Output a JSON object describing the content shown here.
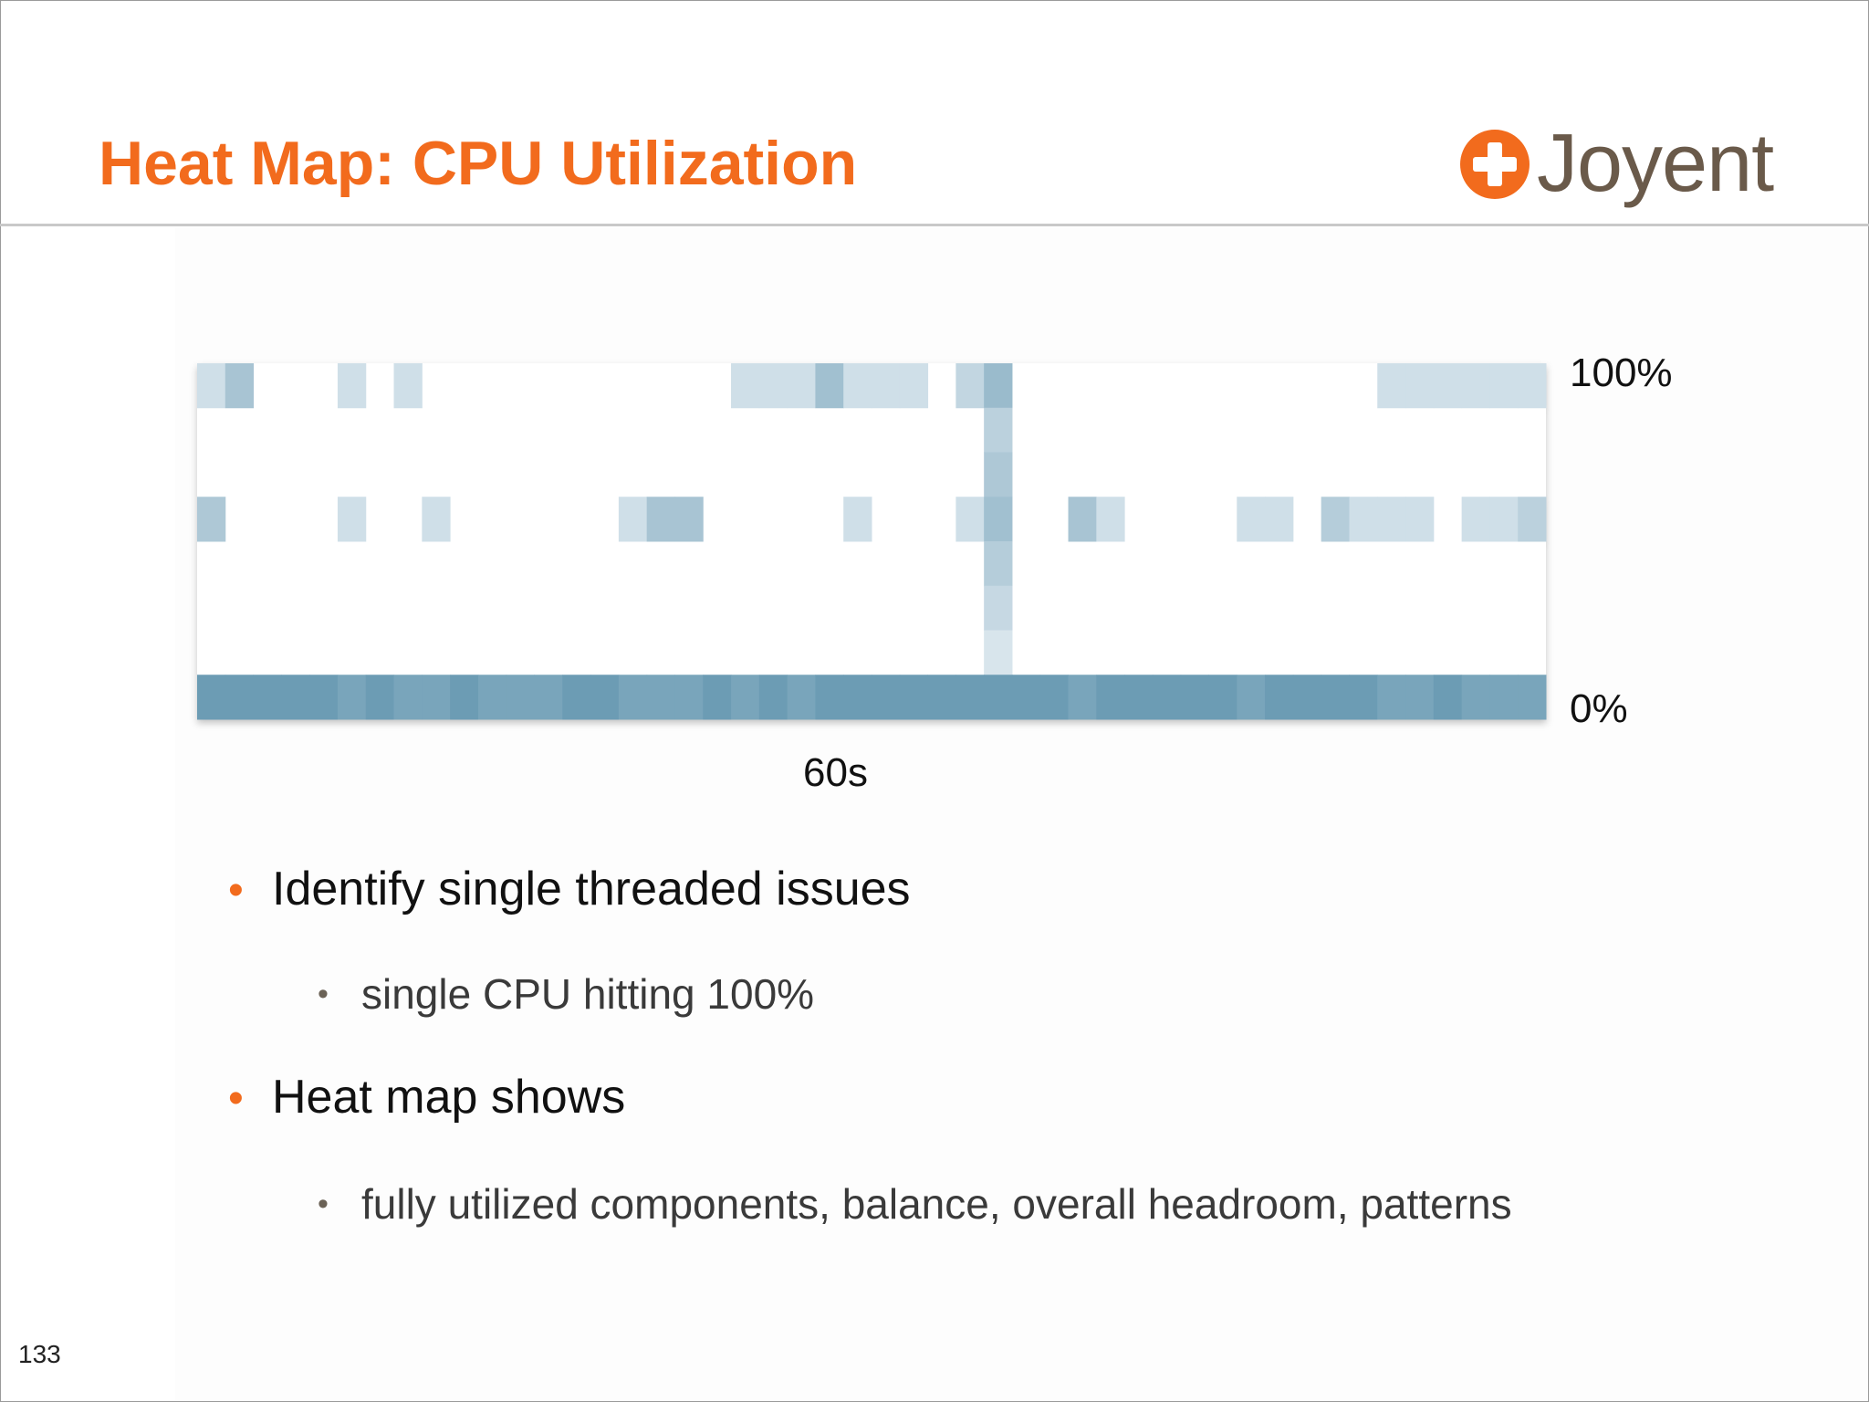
{
  "slide": {
    "title": "Heat Map: CPU Utilization",
    "logo_text": "Joyent",
    "logo_icon": "plus-circle-icon",
    "page_number": "133"
  },
  "bullets": [
    {
      "level": 1,
      "text": "Identify single threaded issues"
    },
    {
      "level": 2,
      "text": "single CPU hitting 100%"
    },
    {
      "level": 1,
      "text": "Heat map shows"
    },
    {
      "level": 2,
      "text": "fully utilized components, balance, overall headroom, patterns"
    }
  ],
  "colors": {
    "title": "#f26b1d",
    "bullet_level1": "#f26b1d",
    "heat_base": "#6a9cb5",
    "heat_light": "#e3ecf2"
  },
  "chart_data": {
    "type": "heatmap",
    "title": "",
    "xlabel": "60s",
    "ylabel": "",
    "y_tick_labels": {
      "top": "100%",
      "bottom": "0%"
    },
    "x_range_seconds": [
      0,
      60
    ],
    "y_range_percent": [
      0,
      100
    ],
    "bucket_scale": "0 = empty, 1 = darkest",
    "columns": 48,
    "rows": [
      {
        "row_from_top": 0,
        "cells": [
          [
            0,
            0.15
          ],
          [
            1,
            0.45
          ],
          [
            5,
            0.15
          ],
          [
            7,
            0.15
          ],
          [
            19,
            0.15
          ],
          [
            20,
            0.15
          ],
          [
            21,
            0.15
          ],
          [
            22,
            0.5
          ],
          [
            23,
            0.15
          ],
          [
            24,
            0.15
          ],
          [
            25,
            0.15
          ],
          [
            27,
            0.25
          ],
          [
            28,
            0.55
          ],
          [
            42,
            0.15
          ],
          [
            43,
            0.15
          ],
          [
            44,
            0.15
          ],
          [
            45,
            0.15
          ],
          [
            46,
            0.15
          ],
          [
            47,
            0.15
          ]
        ]
      },
      {
        "row_from_top": 1,
        "cells": [
          [
            28,
            0.3
          ]
        ]
      },
      {
        "row_from_top": 2,
        "cells": [
          [
            28,
            0.4
          ]
        ]
      },
      {
        "row_from_top": 3,
        "cells": [
          [
            0,
            0.4
          ],
          [
            5,
            0.15
          ],
          [
            8,
            0.15
          ],
          [
            15,
            0.15
          ],
          [
            16,
            0.45
          ],
          [
            17,
            0.45
          ],
          [
            23,
            0.15
          ],
          [
            27,
            0.15
          ],
          [
            28,
            0.5
          ],
          [
            31,
            0.45
          ],
          [
            32,
            0.15
          ],
          [
            37,
            0.15
          ],
          [
            38,
            0.15
          ],
          [
            40,
            0.35
          ],
          [
            41,
            0.15
          ],
          [
            42,
            0.15
          ],
          [
            43,
            0.15
          ],
          [
            45,
            0.15
          ],
          [
            46,
            0.15
          ],
          [
            47,
            0.3
          ]
        ]
      },
      {
        "row_from_top": 4,
        "cells": [
          [
            28,
            0.35
          ]
        ]
      },
      {
        "row_from_top": 5,
        "cells": [
          [
            28,
            0.22
          ]
        ]
      },
      {
        "row_from_top": 6,
        "cells": [
          [
            28,
            0.08
          ]
        ]
      },
      {
        "row_from_top": 7,
        "cells": [
          [
            0,
            0.9
          ],
          [
            1,
            0.9
          ],
          [
            2,
            0.9
          ],
          [
            3,
            0.9
          ],
          [
            4,
            0.9
          ],
          [
            5,
            0.8
          ],
          [
            6,
            0.9
          ],
          [
            7,
            0.8
          ],
          [
            8,
            0.8
          ],
          [
            9,
            0.9
          ],
          [
            10,
            0.8
          ],
          [
            11,
            0.8
          ],
          [
            12,
            0.8
          ],
          [
            13,
            0.9
          ],
          [
            14,
            0.9
          ],
          [
            15,
            0.8
          ],
          [
            16,
            0.8
          ],
          [
            17,
            0.8
          ],
          [
            18,
            0.9
          ],
          [
            19,
            0.8
          ],
          [
            20,
            0.9
          ],
          [
            21,
            0.8
          ],
          [
            22,
            0.9
          ],
          [
            23,
            0.9
          ],
          [
            24,
            0.9
          ],
          [
            25,
            0.9
          ],
          [
            26,
            0.9
          ],
          [
            27,
            0.9
          ],
          [
            28,
            0.9
          ],
          [
            29,
            0.9
          ],
          [
            30,
            0.9
          ],
          [
            31,
            0.8
          ],
          [
            32,
            0.9
          ],
          [
            33,
            0.9
          ],
          [
            34,
            0.9
          ],
          [
            35,
            0.9
          ],
          [
            36,
            0.9
          ],
          [
            37,
            0.8
          ],
          [
            38,
            0.9
          ],
          [
            39,
            0.9
          ],
          [
            40,
            0.9
          ],
          [
            41,
            0.9
          ],
          [
            42,
            0.8
          ],
          [
            43,
            0.8
          ],
          [
            44,
            0.9
          ],
          [
            45,
            0.8
          ],
          [
            46,
            0.8
          ],
          [
            47,
            0.8
          ]
        ]
      }
    ]
  }
}
